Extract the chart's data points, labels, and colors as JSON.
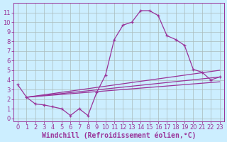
{
  "bg_color": "#cceeff",
  "line_color": "#993399",
  "grid_color": "#aabbbb",
  "xlabel": "Windchill (Refroidissement éolien,°C)",
  "xlabel_color": "#993399",
  "ylim": [
    -0.3,
    12.0
  ],
  "xlim": [
    -0.5,
    23.5
  ],
  "yticks": [
    0,
    1,
    2,
    3,
    4,
    5,
    6,
    7,
    8,
    9,
    10,
    11
  ],
  "xticks": [
    0,
    1,
    2,
    3,
    4,
    5,
    6,
    7,
    8,
    9,
    10,
    11,
    12,
    13,
    14,
    15,
    16,
    17,
    18,
    19,
    20,
    21,
    22,
    23
  ],
  "line1_x": [
    0,
    1,
    2,
    3,
    4,
    5,
    6,
    7,
    8,
    9,
    10,
    11,
    12,
    13,
    14,
    15,
    16,
    17,
    18,
    19,
    20,
    21,
    22,
    23
  ],
  "line1_y": [
    3.5,
    2.2,
    1.5,
    1.4,
    1.2,
    1.0,
    0.3,
    1.0,
    0.3,
    2.7,
    4.5,
    8.2,
    9.7,
    10.0,
    11.2,
    11.2,
    10.7,
    8.6,
    8.2,
    7.6,
    5.1,
    4.8,
    4.0,
    4.3
  ],
  "line2_x": [
    1,
    23
  ],
  "line2_y": [
    2.2,
    4.3
  ],
  "line3_x": [
    1,
    23
  ],
  "line3_y": [
    2.2,
    5.0
  ],
  "line4_x": [
    1,
    23
  ],
  "line4_y": [
    2.2,
    3.8
  ],
  "tick_fontsize": 6,
  "label_fontsize": 7
}
